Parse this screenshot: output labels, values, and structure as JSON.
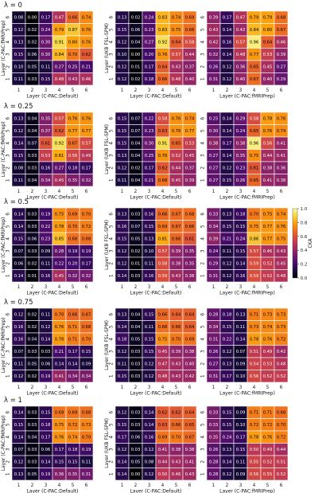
{
  "colorbar": {
    "label": "CKA",
    "ticks": [
      "0.0",
      "0.2",
      "0.4",
      "0.6",
      "0.8",
      "1.0"
    ],
    "colormap": "inferno",
    "range": [
      0,
      1
    ]
  },
  "chart_data": [
    {
      "type": "heatmap",
      "panel": "lambda0-cpac-fmriprep",
      "title": "λ = 0",
      "xlabel": "Layer (C-PAC:Default)",
      "ylabel": "Layer (C-PAC:fMRIPrep)",
      "categories_x": [
        "1",
        "2",
        "3",
        "4",
        "5",
        "6"
      ],
      "categories_y": [
        "6",
        "5",
        "4",
        "3",
        "2",
        "1"
      ],
      "values": [
        [
          0.08,
          0.0,
          0.17,
          0.47,
          0.66,
          0.74
        ],
        [
          0.12,
          0.02,
          0.24,
          0.79,
          0.87,
          0.76
        ],
        [
          0.13,
          0.02,
          0.3,
          0.91,
          0.8,
          0.76
        ],
        [
          0.15,
          0.06,
          0.3,
          0.84,
          0.7,
          0.62
        ],
        [
          0.1,
          0.05,
          0.11,
          0.27,
          0.25,
          0.21
        ],
        [
          0.11,
          0.03,
          0.15,
          0.48,
          0.43,
          0.46
        ]
      ]
    },
    {
      "type": "heatmap",
      "panel": "lambda0-ukb-fsl",
      "title": "",
      "xlabel": "Layer (C-PAC:Default)",
      "ylabel": "Layer (UKB FSL-SPM)",
      "categories_x": [
        "1",
        "2",
        "3",
        "4",
        "5",
        "6"
      ],
      "categories_y": [
        "6",
        "5",
        "4",
        "3",
        "2",
        "1"
      ],
      "values": [
        [
          0.13,
          0.02,
          0.24,
          0.83,
          0.74,
          0.69
        ],
        [
          0.15,
          0.06,
          0.23,
          0.83,
          0.75,
          0.68
        ],
        [
          0.12,
          0.04,
          0.27,
          0.92,
          0.64,
          0.58
        ],
        [
          0.1,
          0.0,
          0.2,
          0.76,
          0.57,
          0.44
        ],
        [
          0.12,
          0.01,
          0.17,
          0.64,
          0.43,
          0.37
        ],
        [
          0.12,
          0.02,
          0.18,
          0.66,
          0.48,
          0.4
        ]
      ]
    },
    {
      "type": "heatmap",
      "panel": "lambda0-cpac-fmriprep-b",
      "title": "",
      "xlabel": "Layer (C-PAC:fMRIPrep)",
      "ylabel": "",
      "categories_x": [
        "1",
        "2",
        "3",
        "4",
        "5",
        "6"
      ],
      "categories_y": [
        "6",
        "5",
        "4",
        "3",
        "2",
        "1"
      ],
      "values": [
        [
          0.39,
          0.17,
          0.47,
          0.79,
          0.79,
          0.68
        ],
        [
          0.43,
          0.14,
          0.42,
          0.84,
          0.8,
          0.67
        ],
        [
          0.42,
          0.16,
          0.57,
          0.96,
          0.64,
          0.46
        ],
        [
          0.32,
          0.14,
          0.48,
          0.77,
          0.53,
          0.39
        ],
        [
          0.26,
          0.12,
          0.36,
          0.65,
          0.45,
          0.27
        ],
        [
          0.31,
          0.12,
          0.4,
          0.67,
          0.4,
          0.29
        ]
      ]
    },
    {
      "type": "heatmap",
      "panel": "lambda025-cpac-fmriprep",
      "title": "λ = 0.25",
      "xlabel": "Layer (C-PAC:Default)",
      "ylabel": "Layer (C-PAC:fMRIPrep)",
      "categories_x": [
        "1",
        "2",
        "3",
        "4",
        "5",
        "6"
      ],
      "categories_y": [
        "6",
        "5",
        "4",
        "3",
        "2",
        "1"
      ],
      "values": [
        [
          0.13,
          0.04,
          0.35,
          0.57,
          0.76,
          0.76
        ],
        [
          0.12,
          0.04,
          0.37,
          0.62,
          0.77,
          0.77
        ],
        [
          0.14,
          0.07,
          0.61,
          0.92,
          0.67,
          0.57
        ],
        [
          0.15,
          0.03,
          0.53,
          0.81,
          0.56,
          0.49
        ],
        [
          0.08,
          0.03,
          0.16,
          0.27,
          0.18,
          0.17
        ],
        [
          0.11,
          0.04,
          0.34,
          0.45,
          0.35,
          0.32
        ]
      ]
    },
    {
      "type": "heatmap",
      "panel": "lambda025-ukb-fsl",
      "title": "",
      "xlabel": "Layer (C-PAC:Default)",
      "ylabel": "Layer (UKB FSL-SPM)",
      "categories_x": [
        "1",
        "2",
        "3",
        "4",
        "5",
        "6"
      ],
      "categories_y": [
        "6",
        "5",
        "4",
        "3",
        "2",
        "1"
      ],
      "values": [
        [
          0.15,
          0.07,
          0.22,
          0.58,
          0.76,
          0.74
        ],
        [
          0.15,
          0.07,
          0.23,
          0.63,
          0.76,
          0.77
        ],
        [
          0.15,
          0.04,
          0.3,
          0.91,
          0.65,
          0.53
        ],
        [
          0.13,
          0.04,
          0.25,
          0.76,
          0.52,
          0.45
        ],
        [
          0.12,
          0.02,
          0.17,
          0.62,
          0.44,
          0.37
        ],
        [
          0.11,
          0.04,
          0.21,
          0.68,
          0.45,
          0.39
        ]
      ]
    },
    {
      "type": "heatmap",
      "panel": "lambda025-cpac-fmriprep-b",
      "title": "",
      "xlabel": "Layer (C-PAC:fMRIPrep)",
      "ylabel": "",
      "categories_x": [
        "1",
        "2",
        "3",
        "4",
        "5",
        "6"
      ],
      "categories_y": [
        "6",
        "5",
        "4",
        "3",
        "2",
        "1"
      ],
      "values": [
        [
          0.25,
          0.14,
          0.29,
          0.58,
          0.78,
          0.76
        ],
        [
          0.3,
          0.14,
          0.24,
          0.65,
          0.76,
          0.74
        ],
        [
          0.38,
          0.17,
          0.38,
          0.96,
          0.56,
          0.41
        ],
        [
          0.27,
          0.14,
          0.35,
          0.75,
          0.44,
          0.41
        ],
        [
          0.27,
          0.12,
          0.23,
          0.61,
          0.38,
          0.36
        ],
        [
          0.27,
          0.15,
          0.26,
          0.65,
          0.41,
          0.38
        ]
      ]
    },
    {
      "type": "heatmap",
      "panel": "lambda05-cpac-fmriprep",
      "title": "λ = 0.5",
      "xlabel": "Layer (C-PAC:Default)",
      "ylabel": "Layer (C-PAC:fMRIPrep)",
      "categories_x": [
        "1",
        "2",
        "3",
        "4",
        "5",
        "6"
      ],
      "categories_y": [
        "6",
        "5",
        "4",
        "3",
        "2",
        "1"
      ],
      "values": [
        [
          0.14,
          0.03,
          0.19,
          0.75,
          0.69,
          0.7
        ],
        [
          0.14,
          0.03,
          0.22,
          0.78,
          0.7,
          0.72
        ],
        [
          0.15,
          0.06,
          0.23,
          0.85,
          0.68,
          0.68
        ],
        [
          0.07,
          0.03,
          0.09,
          0.28,
          0.19,
          0.19
        ],
        [
          0.06,
          0.02,
          0.11,
          0.22,
          0.2,
          0.17
        ],
        [
          0.14,
          0.01,
          0.16,
          0.45,
          0.32,
          0.32
        ]
      ]
    },
    {
      "type": "heatmap",
      "panel": "lambda05-ukb-fsl",
      "title": "",
      "xlabel": "Layer (C-PAC:Default)",
      "ylabel": "Layer (UKB FSL-SPM)",
      "categories_x": [
        "1",
        "2",
        "3",
        "4",
        "5",
        "6"
      ],
      "categories_y": [
        "6",
        "5",
        "4",
        "3",
        "2",
        "1"
      ],
      "values": [
        [
          0.13,
          0.03,
          0.16,
          0.66,
          0.67,
          0.68
        ],
        [
          0.16,
          0.07,
          0.15,
          0.69,
          0.67,
          0.66
        ],
        [
          0.15,
          0.05,
          0.13,
          0.81,
          0.66,
          0.61
        ],
        [
          0.12,
          0.02,
          0.1,
          0.57,
          0.39,
          0.35
        ],
        [
          0.12,
          0.01,
          0.11,
          0.58,
          0.38,
          0.35
        ],
        [
          0.14,
          0.03,
          0.16,
          0.59,
          0.43,
          0.38
        ]
      ]
    },
    {
      "type": "heatmap",
      "panel": "lambda05-cpac-fmriprep-b",
      "title": "",
      "xlabel": "Layer (C-PAC:fMRIPrep)",
      "ylabel": "",
      "categories_x": [
        "1",
        "2",
        "3",
        "4",
        "5",
        "6"
      ],
      "categories_y": [
        "6",
        "5",
        "4",
        "3",
        "2",
        "1"
      ],
      "values": [
        [
          0.33,
          0.13,
          0.18,
          0.7,
          0.75,
          0.74
        ],
        [
          0.34,
          0.15,
          0.15,
          0.75,
          0.77,
          0.76
        ],
        [
          0.39,
          0.21,
          0.24,
          0.86,
          0.77,
          0.75
        ],
        [
          0.24,
          0.11,
          0.15,
          0.57,
          0.46,
          0.43
        ],
        [
          0.29,
          0.12,
          0.14,
          0.59,
          0.52,
          0.45
        ],
        [
          0.31,
          0.12,
          0.16,
          0.59,
          0.52,
          0.48
        ]
      ]
    },
    {
      "type": "heatmap",
      "panel": "lambda075-cpac-fmriprep",
      "title": "λ = 0.75",
      "xlabel": "Layer (C-PAC:Default)",
      "ylabel": "Layer (C-PAC:fMRIPrep)",
      "categories_x": [
        "1",
        "2",
        "3",
        "4",
        "5",
        "6"
      ],
      "categories_y": [
        "6",
        "5",
        "4",
        "3",
        "2",
        "1"
      ],
      "values": [
        [
          0.12,
          0.02,
          0.11,
          0.7,
          0.66,
          0.67
        ],
        [
          0.16,
          0.02,
          0.12,
          0.76,
          0.71,
          0.68
        ],
        [
          0.16,
          0.04,
          0.14,
          0.78,
          0.71,
          0.7
        ],
        [
          0.07,
          0.03,
          0.03,
          0.21,
          0.17,
          0.15
        ],
        [
          0.11,
          0.05,
          0.06,
          0.14,
          0.14,
          0.09
        ],
        [
          0.12,
          0.02,
          0.19,
          0.41,
          0.34,
          0.34
        ]
      ]
    },
    {
      "type": "heatmap",
      "panel": "lambda075-ukb-fsl",
      "title": "",
      "xlabel": "Layer (C-PAC:Default)",
      "ylabel": "Layer (UKB FSL-SPM)",
      "categories_x": [
        "1",
        "2",
        "3",
        "4",
        "5",
        "6"
      ],
      "categories_y": [
        "6",
        "5",
        "4",
        "3",
        "2",
        "1"
      ],
      "values": [
        [
          0.13,
          0.04,
          0.15,
          0.66,
          0.64,
          0.64
        ],
        [
          0.14,
          0.04,
          0.11,
          0.68,
          0.66,
          0.64
        ],
        [
          0.18,
          0.05,
          0.15,
          0.75,
          0.7,
          0.69
        ],
        [
          0.12,
          0.03,
          0.15,
          0.45,
          0.39,
          0.38
        ],
        [
          0.11,
          0.03,
          0.12,
          0.47,
          0.43,
          0.4
        ],
        [
          0.15,
          0.03,
          0.12,
          0.48,
          0.43,
          0.42
        ]
      ]
    },
    {
      "type": "heatmap",
      "panel": "lambda075-cpac-fmriprep-b",
      "title": "",
      "xlabel": "Layer (C-PAC:fMRIPrep)",
      "ylabel": "",
      "categories_x": [
        "1",
        "2",
        "3",
        "4",
        "5",
        "6"
      ],
      "categories_y": [
        "6",
        "5",
        "4",
        "3",
        "2",
        "1"
      ],
      "values": [
        [
          0.28,
          0.18,
          0.13,
          0.71,
          0.73,
          0.73
        ],
        [
          0.34,
          0.15,
          0.11,
          0.73,
          0.74,
          0.73
        ],
        [
          0.31,
          0.22,
          0.14,
          0.78,
          0.76,
          0.72
        ],
        [
          0.26,
          0.12,
          0.07,
          0.51,
          0.49,
          0.42
        ],
        [
          0.27,
          0.13,
          0.09,
          0.54,
          0.53,
          0.48
        ],
        [
          0.31,
          0.17,
          0.1,
          0.56,
          0.52,
          0.52
        ]
      ]
    },
    {
      "type": "heatmap",
      "panel": "lambda1-cpac-fmriprep",
      "title": "λ = 1",
      "xlabel": "Layer (C-PAC:Default)",
      "ylabel": "Layer (C-PAC:fMRIPrep)",
      "categories_x": [
        "1",
        "2",
        "3",
        "4",
        "5",
        "6"
      ],
      "categories_y": [
        "6",
        "5",
        "4",
        "3",
        "2",
        "1"
      ],
      "values": [
        [
          0.14,
          0.03,
          0.15,
          0.69,
          0.69,
          0.68
        ],
        [
          0.15,
          0.03,
          0.18,
          0.75,
          0.72,
          0.73
        ],
        [
          0.14,
          0.04,
          0.17,
          0.76,
          0.74,
          0.7
        ],
        [
          0.07,
          0.03,
          0.06,
          0.17,
          0.18,
          0.19
        ],
        [
          0.12,
          0.03,
          0.14,
          0.15,
          0.15,
          0.11
        ],
        [
          0.13,
          0.05,
          0.19,
          0.36,
          0.35,
          0.31
        ]
      ]
    },
    {
      "type": "heatmap",
      "panel": "lambda1-ukb-fsl",
      "title": "",
      "xlabel": "Layer (C-PAC:Default)",
      "ylabel": "Layer (UKB FSL-SPM)",
      "categories_x": [
        "1",
        "2",
        "3",
        "4",
        "5",
        "6"
      ],
      "categories_y": [
        "6",
        "5",
        "4",
        "3",
        "2",
        "1"
      ],
      "values": [
        [
          0.12,
          0.03,
          0.14,
          0.62,
          0.62,
          0.64
        ],
        [
          0.15,
          0.03,
          0.14,
          0.63,
          0.66,
          0.65
        ],
        [
          0.17,
          0.06,
          0.16,
          0.69,
          0.7,
          0.67
        ],
        [
          0.12,
          0.03,
          0.12,
          0.41,
          0.38,
          0.38
        ],
        [
          0.14,
          0.05,
          0.08,
          0.44,
          0.43,
          0.41
        ],
        [
          0.14,
          0.0,
          0.12,
          0.5,
          0.46,
          0.43
        ]
      ]
    },
    {
      "type": "heatmap",
      "panel": "lambda1-cpac-fmriprep-b",
      "title": "",
      "xlabel": "Layer (C-PAC:fMRIPrep)",
      "ylabel": "",
      "categories_x": [
        "1",
        "2",
        "3",
        "4",
        "5",
        "6"
      ],
      "categories_y": [
        "6",
        "5",
        "4",
        "3",
        "2",
        "1"
      ],
      "values": [
        [
          0.33,
          0.15,
          0.09,
          0.71,
          0.71,
          0.68
        ],
        [
          0.33,
          0.15,
          0.1,
          0.72,
          0.72,
          0.7
        ],
        [
          0.35,
          0.24,
          0.17,
          0.78,
          0.76,
          0.72
        ],
        [
          0.26,
          0.13,
          0.15,
          0.5,
          0.49,
          0.44
        ],
        [
          0.28,
          0.14,
          0.11,
          0.55,
          0.52,
          0.51
        ],
        [
          0.28,
          0.12,
          0.09,
          0.56,
          0.55,
          0.52
        ]
      ]
    }
  ]
}
